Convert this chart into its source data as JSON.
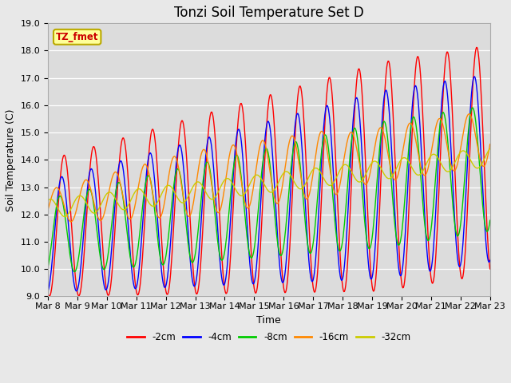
{
  "title": "Tonzi Soil Temperature Set D",
  "xlabel": "Time",
  "ylabel": "Soil Temperature (C)",
  "ylim": [
    9.0,
    19.0
  ],
  "yticks": [
    9.0,
    10.0,
    11.0,
    12.0,
    13.0,
    14.0,
    15.0,
    16.0,
    17.0,
    18.0,
    19.0
  ],
  "x_labels": [
    "Mar 8",
    "Mar 9",
    "Mar 10",
    "Mar 11",
    "Mar 12",
    "Mar 13",
    "Mar 14",
    "Mar 15",
    "Mar 16",
    "Mar 17",
    "Mar 18",
    "Mar 19",
    "Mar 20",
    "Mar 21",
    "Mar 22",
    "Mar 23"
  ],
  "colors": {
    "-2cm": "#FF0000",
    "-4cm": "#0000FF",
    "-8cm": "#00CC00",
    "-16cm": "#FF8800",
    "-32cm": "#CCCC00"
  },
  "annotation_text": "TZ_fmet",
  "annotation_color": "#CC0000",
  "annotation_bg": "#FFFF99",
  "annotation_border": "#BBAA00",
  "fig_facecolor": "#E8E8E8",
  "ax_facecolor": "#DCDCDC",
  "grid_color": "#FFFFFF",
  "title_fontsize": 12,
  "label_fontsize": 9,
  "tick_fontsize": 8
}
